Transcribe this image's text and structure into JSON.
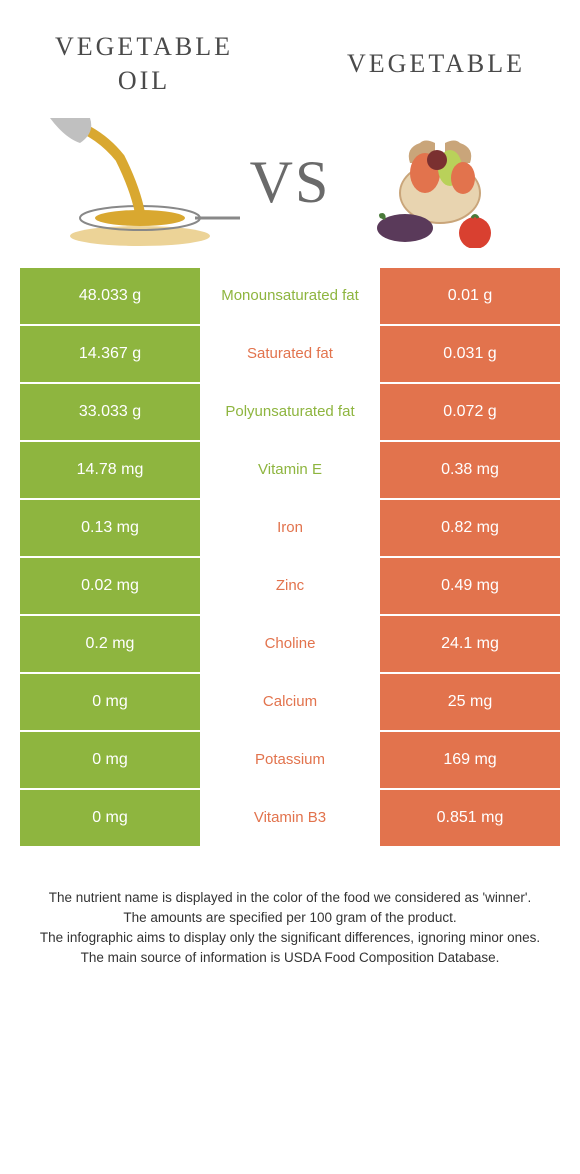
{
  "colors": {
    "green": "#8eb53f",
    "orange": "#e2734d",
    "text": "#4a4a4a"
  },
  "titles": {
    "left_line1": "VEGETABLE",
    "left_line2": "OIL",
    "right": "VEGETABLE",
    "vs": "VS"
  },
  "rows": [
    {
      "left": "48.033 g",
      "mid": "Monounsaturated fat",
      "right": "0.01 g",
      "winner": "green"
    },
    {
      "left": "14.367 g",
      "mid": "Saturated fat",
      "right": "0.031 g",
      "winner": "orange"
    },
    {
      "left": "33.033 g",
      "mid": "Polyunsaturated fat",
      "right": "0.072 g",
      "winner": "green"
    },
    {
      "left": "14.78 mg",
      "mid": "Vitamin E",
      "right": "0.38 mg",
      "winner": "green"
    },
    {
      "left": "0.13 mg",
      "mid": "Iron",
      "right": "0.82 mg",
      "winner": "orange"
    },
    {
      "left": "0.02 mg",
      "mid": "Zinc",
      "right": "0.49 mg",
      "winner": "orange"
    },
    {
      "left": "0.2 mg",
      "mid": "Choline",
      "right": "24.1 mg",
      "winner": "orange"
    },
    {
      "left": "0 mg",
      "mid": "Calcium",
      "right": "25 mg",
      "winner": "orange"
    },
    {
      "left": "0 mg",
      "mid": "Potassium",
      "right": "169 mg",
      "winner": "orange"
    },
    {
      "left": "0 mg",
      "mid": "Vitamin B3",
      "right": "0.851 mg",
      "winner": "orange"
    }
  ],
  "footer": {
    "line1": "The nutrient name is displayed in the color of the food we considered as 'winner'.",
    "line2": "The amounts are specified per 100 gram of the product.",
    "line3": "The infographic aims to display only the significant differences, ignoring minor ones.",
    "line4": "The main source of information is USDA Food Composition Database."
  }
}
